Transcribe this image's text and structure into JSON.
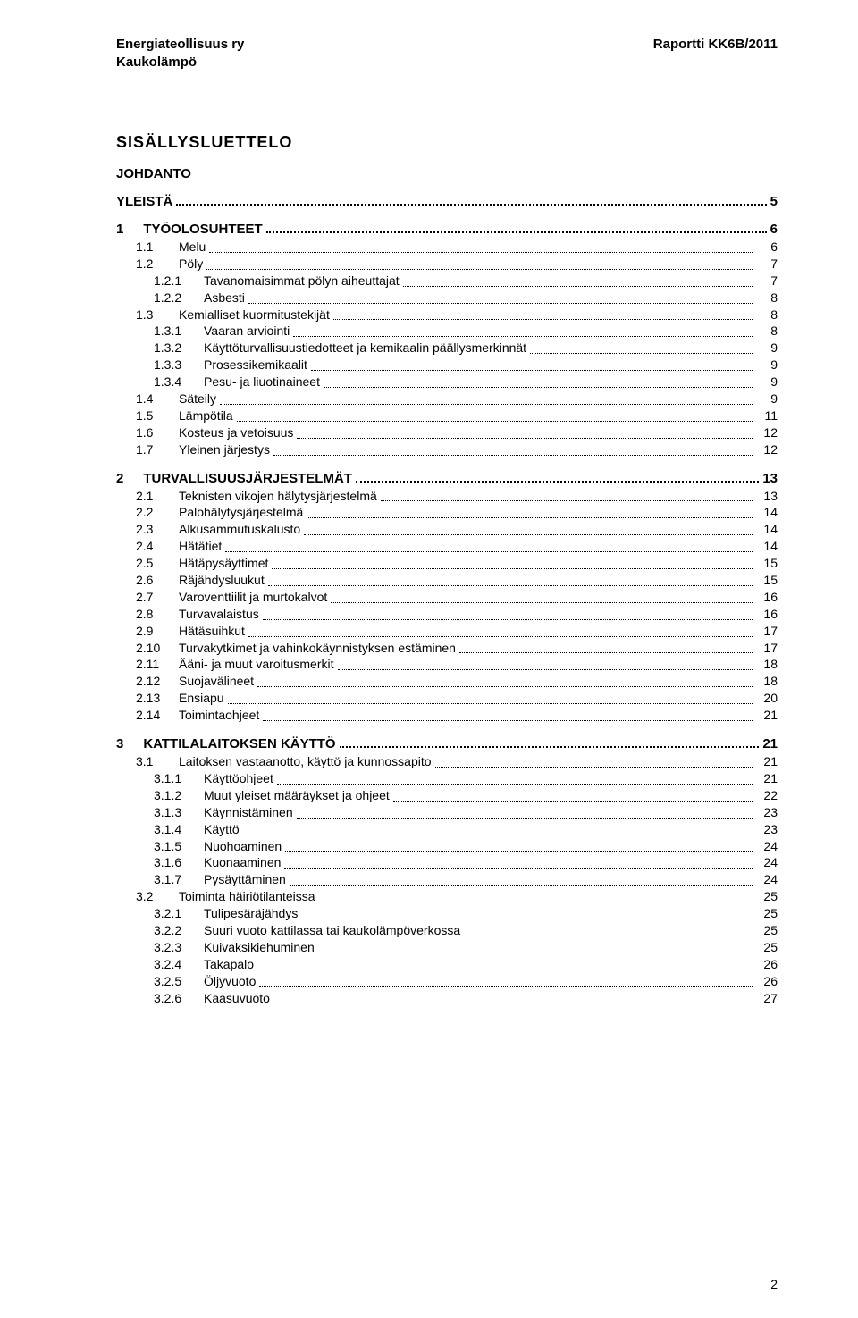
{
  "header": {
    "left_line1": "Energiateollisuus ry",
    "left_line2": "Kaukolämpö",
    "right_line1": "Raportti  KK6B/2011"
  },
  "toc": {
    "title": "SISÄLLYSLUETTELO",
    "johdanto": "JOHDANTO",
    "top": {
      "label": "YLEISTÄ",
      "page": "5"
    },
    "sections": [
      {
        "num": "1",
        "label": "TYÖOLOSUHTEET",
        "page": "6",
        "children": [
          {
            "lvl": 2,
            "num": "1.1",
            "label": "Melu",
            "page": "6"
          },
          {
            "lvl": 2,
            "num": "1.2",
            "label": "Pöly",
            "page": "7"
          },
          {
            "lvl": 3,
            "num": "1.2.1",
            "label": "Tavanomaisimmat pölyn aiheuttajat",
            "page": "7"
          },
          {
            "lvl": 3,
            "num": "1.2.2",
            "label": "Asbesti",
            "page": "8"
          },
          {
            "lvl": 2,
            "num": "1.3",
            "label": "Kemialliset kuormitustekijät",
            "page": "8"
          },
          {
            "lvl": 3,
            "num": "1.3.1",
            "label": "Vaaran arviointi",
            "page": "8"
          },
          {
            "lvl": 3,
            "num": "1.3.2",
            "label": "Käyttöturvallisuustiedotteet ja kemikaalin päällysmerkinnät",
            "page": "9"
          },
          {
            "lvl": 3,
            "num": "1.3.3",
            "label": "Prosessikemikaalit",
            "page": "9"
          },
          {
            "lvl": 3,
            "num": "1.3.4",
            "label": "Pesu- ja liuotinaineet",
            "page": "9"
          },
          {
            "lvl": 2,
            "num": "1.4",
            "label": "Säteily",
            "page": "9"
          },
          {
            "lvl": 2,
            "num": "1.5",
            "label": "Lämpötila",
            "page": "11"
          },
          {
            "lvl": 2,
            "num": "1.6",
            "label": "Kosteus ja vetoisuus",
            "page": "12"
          },
          {
            "lvl": 2,
            "num": "1.7",
            "label": "Yleinen järjestys",
            "page": "12"
          }
        ]
      },
      {
        "num": "2",
        "label": "TURVALLISUUSJÄRJESTELMÄT",
        "page": "13",
        "children": [
          {
            "lvl": 2,
            "num": "2.1",
            "label": "Teknisten vikojen hälytysjärjestelmä",
            "page": "13"
          },
          {
            "lvl": 2,
            "num": "2.2",
            "label": "Palohälytysjärjestelmä",
            "page": "14"
          },
          {
            "lvl": 2,
            "num": "2.3",
            "label": "Alkusammutuskalusto",
            "page": "14"
          },
          {
            "lvl": 2,
            "num": "2.4",
            "label": "Hätätiet",
            "page": "14"
          },
          {
            "lvl": 2,
            "num": "2.5",
            "label": "Hätäpysäyttimet",
            "page": "15"
          },
          {
            "lvl": 2,
            "num": "2.6",
            "label": "Räjähdysluukut",
            "page": "15"
          },
          {
            "lvl": 2,
            "num": "2.7",
            "label": "Varoventtiilit ja murtokalvot",
            "page": "16"
          },
          {
            "lvl": 2,
            "num": "2.8",
            "label": "Turvavalaistus",
            "page": "16"
          },
          {
            "lvl": 2,
            "num": "2.9",
            "label": "Hätäsuihkut",
            "page": "17"
          },
          {
            "lvl": 2,
            "num": "2.10",
            "label": "Turvakytkimet ja vahinkokäynnistyksen estäminen",
            "page": "17"
          },
          {
            "lvl": 2,
            "num": "2.11",
            "label": "Ääni- ja muut varoitusmerkit",
            "page": "18"
          },
          {
            "lvl": 2,
            "num": "2.12",
            "label": "Suojavälineet",
            "page": "18"
          },
          {
            "lvl": 2,
            "num": "2.13",
            "label": "Ensiapu",
            "page": "20"
          },
          {
            "lvl": 2,
            "num": "2.14",
            "label": "Toimintaohjeet",
            "page": "21"
          }
        ]
      },
      {
        "num": "3",
        "label": "KATTILALAITOKSEN KÄYTTÖ",
        "page": "21",
        "children": [
          {
            "lvl": 2,
            "num": "3.1",
            "label": "Laitoksen vastaanotto, käyttö ja kunnossapito",
            "page": "21"
          },
          {
            "lvl": 3,
            "num": "3.1.1",
            "label": "Käyttöohjeet",
            "page": "21"
          },
          {
            "lvl": 3,
            "num": "3.1.2",
            "label": "Muut yleiset määräykset ja ohjeet",
            "page": "22"
          },
          {
            "lvl": 3,
            "num": "3.1.3",
            "label": "Käynnistäminen",
            "page": "23"
          },
          {
            "lvl": 3,
            "num": "3.1.4",
            "label": "Käyttö",
            "page": "23"
          },
          {
            "lvl": 3,
            "num": "3.1.5",
            "label": "Nuohoaminen",
            "page": "24"
          },
          {
            "lvl": 3,
            "num": "3.1.6",
            "label": "Kuonaaminen",
            "page": "24"
          },
          {
            "lvl": 3,
            "num": "3.1.7",
            "label": "Pysäyttäminen",
            "page": "24"
          },
          {
            "lvl": 2,
            "num": "3.2",
            "label": "Toiminta häiriötilanteissa",
            "page": "25"
          },
          {
            "lvl": 3,
            "num": "3.2.1",
            "label": "Tulipesäräjähdys",
            "page": "25"
          },
          {
            "lvl": 3,
            "num": "3.2.2",
            "label": "Suuri vuoto kattilassa tai kaukolämpöverkossa",
            "page": "25"
          },
          {
            "lvl": 3,
            "num": "3.2.3",
            "label": "Kuivaksikiehuminen",
            "page": "25"
          },
          {
            "lvl": 3,
            "num": "3.2.4",
            "label": "Takapalo",
            "page": "26"
          },
          {
            "lvl": 3,
            "num": "3.2.5",
            "label": "Öljyvuoto",
            "page": "26"
          },
          {
            "lvl": 3,
            "num": "3.2.6",
            "label": "Kaasuvuoto",
            "page": "27"
          }
        ]
      }
    ]
  },
  "footer": {
    "page_number": "2"
  }
}
